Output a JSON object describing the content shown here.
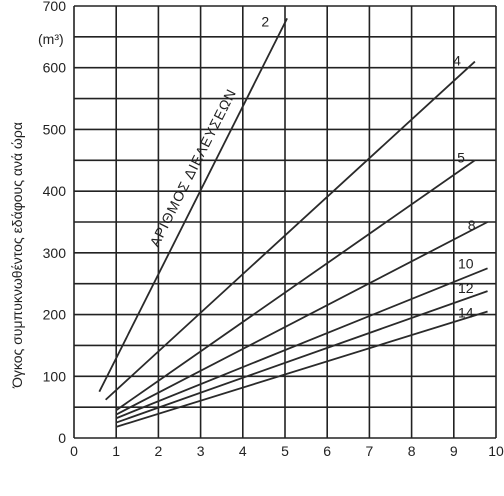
{
  "chart_data": {
    "type": "line",
    "ylabel": "Όγκος συμπυκνωθέντος εδάφους ανά ώρα",
    "yunit": "(m³)",
    "annotation": "ΑΡΙΘΜΟΣ ΔΙΕΛΕΥΣΕΩΝ",
    "xlim": [
      0,
      10
    ],
    "ylim": [
      0,
      700
    ],
    "xticks": [
      "0",
      "1",
      "2",
      "3",
      "4",
      "5",
      "6",
      "7",
      "8",
      "9",
      "10"
    ],
    "yticks": [
      "0",
      "100",
      "200",
      "300",
      "400",
      "500",
      "600",
      "700"
    ],
    "grid": true,
    "series": [
      {
        "name": "2",
        "points": [
          [
            0.6,
            75
          ],
          [
            5.05,
            680
          ]
        ]
      },
      {
        "name": "4",
        "points": [
          [
            0.75,
            62
          ],
          [
            9.5,
            610
          ]
        ]
      },
      {
        "name": "5",
        "points": [
          [
            1.0,
            45
          ],
          [
            9.5,
            450
          ]
        ]
      },
      {
        "name": "8",
        "points": [
          [
            1.0,
            38
          ],
          [
            9.8,
            350
          ]
        ]
      },
      {
        "name": "10",
        "points": [
          [
            1.0,
            32
          ],
          [
            9.8,
            275
          ]
        ]
      },
      {
        "name": "12",
        "points": [
          [
            1.0,
            25
          ],
          [
            9.8,
            238
          ]
        ]
      },
      {
        "name": "14",
        "points": [
          [
            1.0,
            18
          ],
          [
            9.8,
            205
          ]
        ]
      }
    ]
  }
}
